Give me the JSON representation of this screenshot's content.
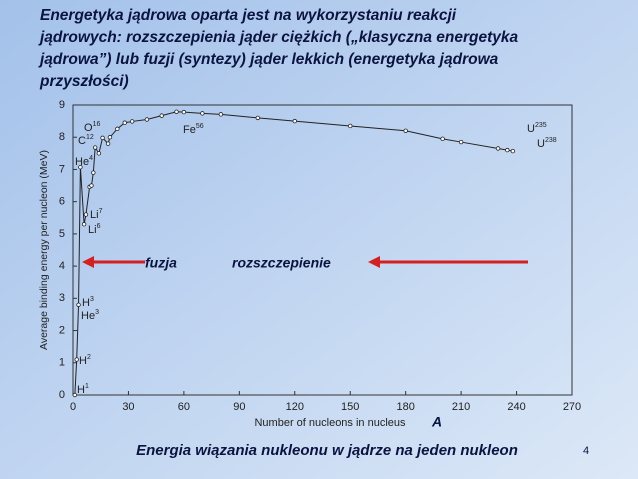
{
  "chart_data": {
    "type": "line",
    "title": [
      "Energetyka jądrowa oparta jest na wykorzystaniu reakcji",
      "jądrowych:  rozszczepienia jąder ciężkich („klasyczna energetyka",
      "jądrowa”) lub fuzji (syntezy) jąder lekkich (energetyka jądrowa",
      "przyszłości)"
    ],
    "x_label": "Number of nucleons in nucleus",
    "x_symbol": "A",
    "y_label": "Average binding energy per nucleon (MeV)",
    "caption": "Energia wiązania nukleonu w jądrze na jeden nukleon",
    "page_number": "4",
    "fusion_label": "fuzja",
    "fission_label": "rozszczepienie",
    "xlim": [
      0,
      270
    ],
    "xticks": [
      0,
      30,
      60,
      90,
      120,
      150,
      180,
      210,
      240,
      270
    ],
    "ylim": [
      0,
      9
    ],
    "yticks": [
      0,
      1,
      2,
      3,
      4,
      5,
      6,
      7,
      8,
      9
    ],
    "series": [
      {
        "color": "#222222",
        "x": [
          1,
          2,
          3,
          4,
          6,
          7,
          9,
          10,
          11,
          12,
          14,
          16,
          19,
          20,
          24,
          28,
          32,
          40,
          48,
          56,
          60,
          70,
          80,
          100,
          120,
          150,
          180,
          200,
          210,
          230,
          235,
          238
        ],
        "values": [
          0,
          1.1,
          2.8,
          7.07,
          5.3,
          5.6,
          6.46,
          6.5,
          6.9,
          7.68,
          7.5,
          7.98,
          7.8,
          8.0,
          8.26,
          8.45,
          8.49,
          8.55,
          8.67,
          8.79,
          8.78,
          8.74,
          8.71,
          8.6,
          8.5,
          8.35,
          8.2,
          7.95,
          7.85,
          7.65,
          7.6,
          7.57
        ]
      }
    ],
    "annotations": [
      {
        "text": "O",
        "sup": "16"
      },
      {
        "text": "C",
        "sup": "12"
      },
      {
        "text": "He",
        "sup": "4"
      },
      {
        "text": "Li",
        "sup": "7"
      },
      {
        "text": "Li",
        "sup": "6"
      },
      {
        "text": "H",
        "sup": "3"
      },
      {
        "text": "He",
        "sup": "3"
      },
      {
        "text": "H",
        "sup": "2"
      },
      {
        "text": "H",
        "sup": "1"
      },
      {
        "text": "Fe",
        "sup": "56"
      },
      {
        "text": "U",
        "sup": "235"
      },
      {
        "text": "U",
        "sup": "238"
      }
    ]
  }
}
